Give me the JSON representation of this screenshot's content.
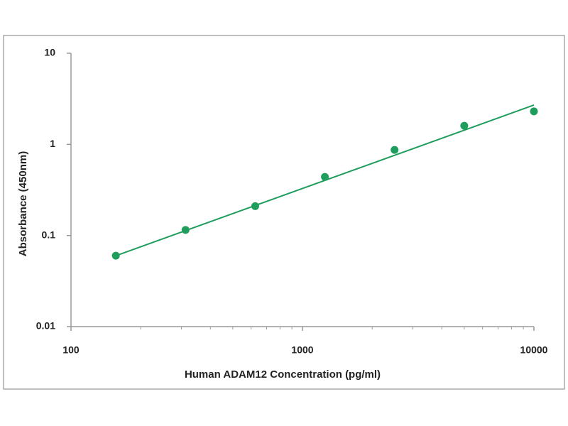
{
  "chart_data": {
    "type": "scatter",
    "x_label": "Human ADAM12  Concentration (pg/ml)",
    "y_label": "Absorbance (450nm)",
    "series": [
      {
        "color": "#1f9d5c",
        "x": [
          156.25,
          312.5,
          625,
          1250,
          2500,
          5000,
          10000
        ],
        "values": [
          0.06,
          0.115,
          0.21,
          0.44,
          0.87,
          1.6,
          2.3
        ]
      }
    ],
    "fit_line": {
      "color": "#1f9d5c",
      "x": [
        156.25,
        10000
      ],
      "values": [
        0.06,
        2.7
      ]
    },
    "xscale": "log",
    "yscale": "log",
    "xlim": [
      100,
      10000
    ],
    "ylim": [
      0.01,
      10
    ],
    "xticks": [
      100,
      1000,
      10000
    ],
    "xminor_ticks": [
      200,
      300,
      400,
      500,
      600,
      700,
      800,
      900,
      2000,
      3000,
      4000,
      5000,
      6000,
      7000,
      8000,
      9000
    ],
    "yticks": [
      0.01,
      0.1,
      1,
      10
    ],
    "grid": false
  }
}
